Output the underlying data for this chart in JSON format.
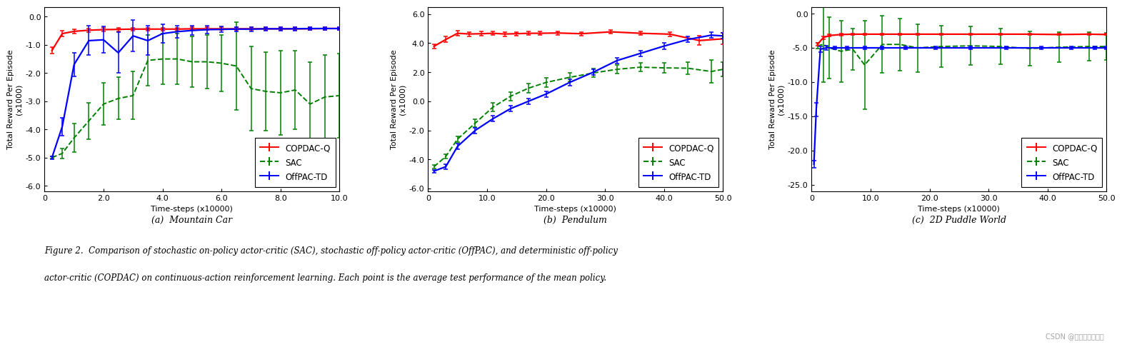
{
  "fig_width": 16.11,
  "fig_height": 5.07,
  "ylabel": "Total Reward Per Episode\n(x1000)",
  "xlabel": "Time-steps (x10000)",
  "caption_line1": "Figure 2.  Comparison of stochastic on-policy actor-critic (SAC), stochastic off-policy actor-critic (OffPAC), and deterministic off-policy",
  "caption_line2": "actor-critic (COPDAC) on continuous-action reinforcement learning. Each point is the average test performance of the mean policy.",
  "watermark": "CSDN @西西弗的小蚂蚁",
  "plots": [
    {
      "title": "(a)  Mountain Car",
      "xlim": [
        0,
        10.0
      ],
      "ylim": [
        -6.2,
        0.35
      ],
      "xticks": [
        0,
        2.0,
        4.0,
        6.0,
        8.0,
        10.0
      ],
      "xticklabels": [
        "0",
        "2.0",
        "4.0",
        "6.0",
        "8.0",
        "10.0"
      ],
      "yticks": [
        0.0,
        -1.0,
        -2.0,
        -3.0,
        -4.0,
        -5.0,
        -6.0
      ],
      "yticklabels": [
        "0.0",
        "-1.0",
        "-2.0",
        "-3.0",
        "-4.0",
        "-5.0",
        "-6.0"
      ],
      "copdac_x": [
        0.25,
        0.6,
        1.0,
        1.5,
        2.0,
        2.5,
        3.0,
        3.5,
        4.0,
        4.5,
        5.0,
        5.5,
        6.0,
        6.5,
        7.0,
        7.5,
        8.0,
        8.5,
        9.0,
        9.5,
        10.0
      ],
      "copdac_y": [
        -1.2,
        -0.6,
        -0.52,
        -0.48,
        -0.46,
        -0.45,
        -0.44,
        -0.44,
        -0.44,
        -0.44,
        -0.43,
        -0.43,
        -0.43,
        -0.43,
        -0.43,
        -0.43,
        -0.43,
        -0.43,
        -0.43,
        -0.42,
        -0.42
      ],
      "copdac_err": [
        0.12,
        0.1,
        0.08,
        0.07,
        0.06,
        0.06,
        0.05,
        0.05,
        0.05,
        0.05,
        0.05,
        0.05,
        0.05,
        0.05,
        0.05,
        0.05,
        0.05,
        0.05,
        0.05,
        0.05,
        0.05
      ],
      "sac_x": [
        0.25,
        0.6,
        1.0,
        1.5,
        2.0,
        2.5,
        3.0,
        3.5,
        4.0,
        4.5,
        5.0,
        5.5,
        6.0,
        6.5,
        7.0,
        7.5,
        8.0,
        8.5,
        9.0,
        9.5,
        10.0
      ],
      "sac_y": [
        -5.0,
        -4.85,
        -4.3,
        -3.7,
        -3.1,
        -2.9,
        -2.8,
        -1.55,
        -1.5,
        -1.5,
        -1.6,
        -1.6,
        -1.65,
        -1.75,
        -2.55,
        -2.65,
        -2.7,
        -2.6,
        -3.1,
        -2.85,
        -2.8
      ],
      "sac_err": [
        0.04,
        0.18,
        0.5,
        0.65,
        0.75,
        0.75,
        0.85,
        0.9,
        0.9,
        0.9,
        0.9,
        0.95,
        1.0,
        1.55,
        1.5,
        1.4,
        1.5,
        1.4,
        1.5,
        1.5,
        1.5
      ],
      "offpac_x": [
        0.25,
        0.6,
        1.0,
        1.5,
        2.0,
        2.5,
        3.0,
        3.5,
        4.0,
        4.5,
        5.0,
        5.5,
        6.0,
        6.5,
        7.0,
        7.5,
        8.0,
        8.5,
        9.0,
        9.5,
        10.0
      ],
      "offpac_y": [
        -5.0,
        -3.9,
        -1.7,
        -0.85,
        -0.82,
        -1.28,
        -0.68,
        -0.85,
        -0.6,
        -0.53,
        -0.49,
        -0.46,
        -0.45,
        -0.44,
        -0.44,
        -0.43,
        -0.43,
        -0.43,
        -0.42,
        -0.42,
        -0.42
      ],
      "offpac_err": [
        0.05,
        0.32,
        0.42,
        0.52,
        0.47,
        0.72,
        0.56,
        0.52,
        0.32,
        0.22,
        0.16,
        0.13,
        0.1,
        0.08,
        0.07,
        0.06,
        0.06,
        0.06,
        0.05,
        0.05,
        0.05
      ]
    },
    {
      "title": "(b)  Pendulum",
      "xlim": [
        0,
        50.0
      ],
      "ylim": [
        -6.2,
        6.5
      ],
      "xticks": [
        0,
        10.0,
        20.0,
        30.0,
        40.0,
        50.0
      ],
      "xticklabels": [
        "0",
        "10.0",
        "20.0",
        "30.0",
        "40.0",
        "50.0"
      ],
      "yticks": [
        6.0,
        4.0,
        2.0,
        0.0,
        -2.0,
        -4.0,
        -6.0
      ],
      "yticklabels": [
        "6.0",
        "4.0",
        "2.0",
        "0.0",
        "-2.0",
        "-4.0",
        "-6.0"
      ],
      "copdac_x": [
        1,
        3,
        5,
        7,
        9,
        11,
        13,
        15,
        17,
        19,
        22,
        26,
        31,
        36,
        41,
        46,
        50
      ],
      "copdac_y": [
        3.78,
        4.25,
        4.68,
        4.63,
        4.65,
        4.68,
        4.63,
        4.65,
        4.68,
        4.68,
        4.7,
        4.65,
        4.78,
        4.68,
        4.62,
        4.18,
        4.3
      ],
      "copdac_err": [
        0.15,
        0.2,
        0.18,
        0.15,
        0.15,
        0.12,
        0.15,
        0.12,
        0.12,
        0.12,
        0.12,
        0.12,
        0.12,
        0.12,
        0.15,
        0.32,
        0.4
      ],
      "sac_x": [
        1,
        3,
        5,
        8,
        11,
        14,
        17,
        20,
        24,
        28,
        32,
        36,
        40,
        44,
        48,
        50
      ],
      "sac_y": [
        -4.5,
        -3.8,
        -2.6,
        -1.5,
        -0.4,
        0.35,
        0.9,
        1.3,
        1.65,
        1.95,
        2.2,
        2.35,
        2.3,
        2.28,
        2.05,
        2.2
      ],
      "sac_err": [
        0.1,
        0.15,
        0.2,
        0.25,
        0.3,
        0.3,
        0.3,
        0.3,
        0.3,
        0.3,
        0.3,
        0.3,
        0.35,
        0.4,
        0.8,
        0.5
      ],
      "offpac_x": [
        1,
        3,
        5,
        8,
        11,
        14,
        17,
        20,
        24,
        28,
        32,
        36,
        40,
        44,
        48,
        50
      ],
      "offpac_y": [
        -4.8,
        -4.5,
        -3.1,
        -2.0,
        -1.2,
        -0.5,
        0.0,
        0.5,
        1.3,
        2.0,
        2.8,
        3.3,
        3.8,
        4.25,
        4.55,
        4.5
      ],
      "offpac_err": [
        0.1,
        0.15,
        0.2,
        0.2,
        0.2,
        0.2,
        0.2,
        0.2,
        0.2,
        0.2,
        0.2,
        0.2,
        0.2,
        0.2,
        0.2,
        0.2
      ]
    },
    {
      "title": "(c)  2D Puddle World",
      "xlim": [
        0,
        50.0
      ],
      "ylim": [
        -26.0,
        1.0
      ],
      "xticks": [
        0,
        10.0,
        20.0,
        30.0,
        40.0,
        50.0
      ],
      "xticklabels": [
        "0",
        "10.0",
        "20.0",
        "30.0",
        "40.0",
        "50.0"
      ],
      "yticks": [
        0.0,
        -5.0,
        -10.0,
        -15.0,
        -20.0,
        -25.0
      ],
      "yticklabels": [
        "0.0",
        "-5.0",
        "-10.0",
        "-15.0",
        "-20.0",
        "-25.0"
      ],
      "copdac_x": [
        1,
        2,
        3,
        5,
        7,
        9,
        12,
        15,
        18,
        22,
        27,
        32,
        37,
        42,
        47,
        50
      ],
      "copdac_y": [
        -4.5,
        -3.5,
        -3.2,
        -3.05,
        -3.0,
        -3.0,
        -3.0,
        -3.0,
        -3.0,
        -3.0,
        -3.0,
        -3.0,
        -3.0,
        -3.05,
        -3.0,
        -3.05
      ],
      "copdac_err": [
        0.2,
        0.2,
        0.15,
        0.13,
        0.12,
        0.12,
        0.12,
        0.12,
        0.12,
        0.12,
        0.12,
        0.12,
        0.12,
        0.12,
        0.12,
        0.12
      ],
      "sac_x": [
        1,
        2,
        3,
        5,
        7,
        9,
        12,
        15,
        18,
        22,
        27,
        32,
        37,
        42,
        47,
        50
      ],
      "sac_y": [
        -4.7,
        -4.5,
        -5.0,
        -5.5,
        -5.2,
        -7.5,
        -4.5,
        -4.5,
        -5.0,
        -4.8,
        -4.7,
        -4.8,
        -5.1,
        -4.9,
        -4.8,
        -4.8
      ],
      "sac_err": [
        0.4,
        5.5,
        4.5,
        4.5,
        3.0,
        6.5,
        4.2,
        3.8,
        3.5,
        3.0,
        2.8,
        2.6,
        2.5,
        2.2,
        2.1,
        2.0
      ],
      "offpac_x": [
        0.4,
        0.8,
        1.5,
        2.5,
        4,
        6,
        9,
        12,
        16,
        21,
        27,
        33,
        39,
        44,
        48,
        50
      ],
      "offpac_y": [
        -22.0,
        -14.0,
        -5.2,
        -5.0,
        -5.0,
        -5.0,
        -5.0,
        -5.0,
        -5.0,
        -5.0,
        -5.0,
        -5.0,
        -5.0,
        -5.0,
        -5.0,
        -5.0
      ],
      "offpac_err": [
        0.5,
        1.0,
        0.4,
        0.3,
        0.2,
        0.2,
        0.2,
        0.2,
        0.2,
        0.2,
        0.2,
        0.2,
        0.2,
        0.2,
        0.2,
        0.2
      ]
    }
  ],
  "copdac_color": "#ff0000",
  "sac_color": "#008000",
  "offpac_color": "#0000ff"
}
